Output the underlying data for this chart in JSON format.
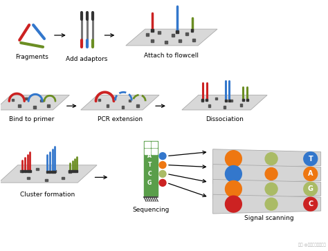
{
  "bg_color": "#ffffff",
  "colors": {
    "red": "#cc2222",
    "blue": "#3377cc",
    "dark_green": "#6b8e23",
    "orange": "#ee7711",
    "light_green": "#aabb66",
    "dark_red": "#aa2222",
    "gray_plate": "#d8d8d8",
    "black_cap": "#333333",
    "seq_green": "#5a9e4a"
  },
  "labels": {
    "fragments": "Fragments",
    "add_adaptors": "Add adaptors",
    "attach_flowcell": "Attach to flowcell",
    "bind_primer": "Bind to primer",
    "pcr_extension": "PCR extension",
    "dissociation": "Dissociation",
    "cluster_formation": "Cluster formation",
    "sequencing": "Sequencing",
    "signal_scanning": "Signal scanning"
  },
  "label_fontsize": 6.5,
  "watermark": "知乎 @云海信学生物信息"
}
